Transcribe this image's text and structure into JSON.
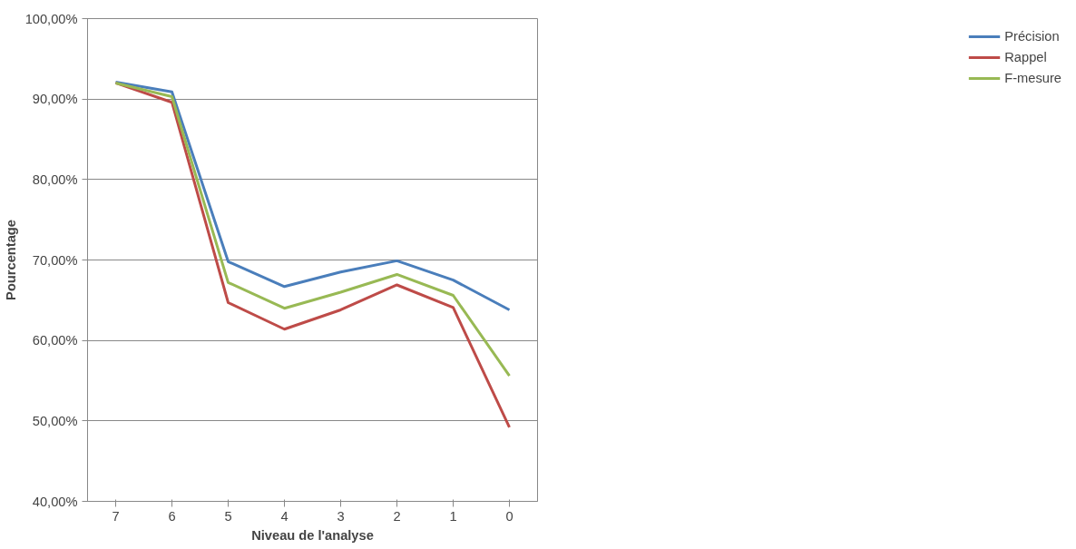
{
  "chart_data": {
    "type": "line",
    "xlabel": "Niveau de l'analyse",
    "ylabel": "Pourcentage",
    "categories": [
      "7",
      "6",
      "5",
      "4",
      "3",
      "2",
      "1",
      "0"
    ],
    "series": [
      {
        "name": "Précision",
        "color": "#4a7ebb",
        "values": [
          92.1,
          90.9,
          69.8,
          66.7,
          68.5,
          69.9,
          67.5,
          63.8
        ]
      },
      {
        "name": "Rappel",
        "color": "#be4b48",
        "values": [
          92.0,
          89.6,
          64.7,
          61.4,
          63.8,
          66.9,
          64.1,
          49.2
        ]
      },
      {
        "name": "F-mesure",
        "color": "#98b954",
        "values": [
          92.0,
          90.3,
          67.2,
          64.0,
          66.0,
          68.2,
          65.6,
          55.6
        ]
      }
    ],
    "ylim": [
      40,
      100
    ],
    "yticks": [
      {
        "value": 40,
        "label": "40,00%"
      },
      {
        "value": 50,
        "label": "50,00%"
      },
      {
        "value": 60,
        "label": "60,00%"
      },
      {
        "value": 70,
        "label": "70,00%"
      },
      {
        "value": 80,
        "label": "80,00%"
      },
      {
        "value": 90,
        "label": "90,00%"
      },
      {
        "value": 100,
        "label": "100,00%"
      }
    ],
    "grid": "y",
    "legend": "right",
    "marker": "none",
    "line_style": "solid"
  }
}
